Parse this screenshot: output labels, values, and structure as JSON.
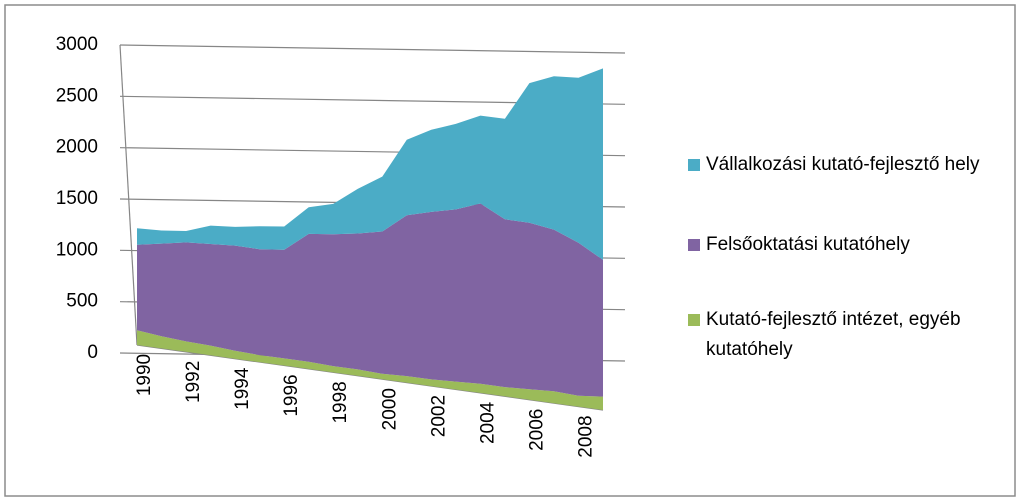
{
  "chart_data": {
    "type": "area3d",
    "categories": [
      "1990",
      null,
      "1992",
      null,
      "1994",
      null,
      "1996",
      null,
      "1998",
      null,
      "2000",
      null,
      "2002",
      null,
      "2004",
      null,
      "2006",
      null,
      "2008",
      null
    ],
    "series": [
      {
        "name": "Vállalkozási kutató-fejlesztő hely",
        "color": "#4bacc6",
        "values": [
          180,
          140,
          120,
          190,
          190,
          230,
          230,
          260,
          290,
          420,
          510,
          690,
          740,
          760,
          770,
          870,
          1190,
          1290,
          1370,
          1570
        ]
      },
      {
        "name": "Felsőoktatási kutatóhely",
        "color": "#8064a2",
        "values": [
          930,
          990,
          1040,
          1050,
          1070,
          1060,
          1070,
          1240,
          1260,
          1280,
          1320,
          1470,
          1510,
          1530,
          1580,
          1450,
          1420,
          1360,
          1270,
          1120
        ]
      },
      {
        "name": "Kutató-fejlesztő intézet, egyéb kutatóhely",
        "color": "#9bbb59",
        "values": [
          160,
          130,
          110,
          100,
          80,
          70,
          70,
          70,
          60,
          60,
          50,
          60,
          60,
          70,
          80,
          80,
          90,
          100,
          90,
          110
        ]
      }
    ],
    "ylim": [
      0,
      3000
    ],
    "yticks": [
      0,
      500,
      1000,
      1500,
      2000,
      2500,
      3000
    ],
    "grid": true,
    "legend": "right"
  }
}
